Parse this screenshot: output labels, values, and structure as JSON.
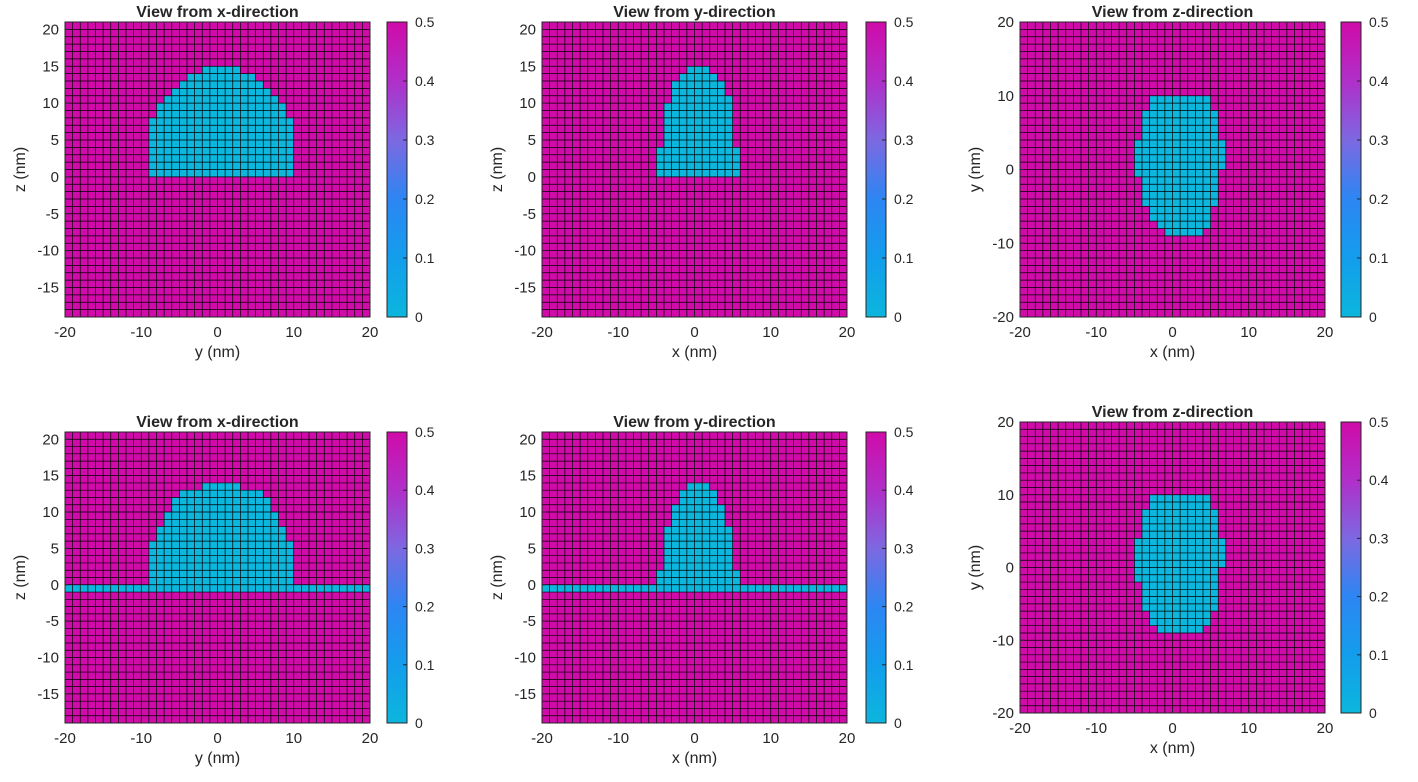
{
  "colors": {
    "low": "#0cb6dd",
    "high": "#d00ba9",
    "grid": "#000000",
    "background": "#ffffff"
  },
  "colormap": {
    "name": "cyan-to-magenta",
    "stops": [
      {
        "v": 0.0,
        "color": "#0cb6dd"
      },
      {
        "v": 0.1,
        "color": "#139dec"
      },
      {
        "v": 0.2,
        "color": "#2d86f3"
      },
      {
        "v": 0.3,
        "color": "#7d68e1"
      },
      {
        "v": 0.4,
        "color": "#b02fc9"
      },
      {
        "v": 0.5,
        "color": "#d00ba9"
      }
    ]
  },
  "chart_data": [
    {
      "type": "heatmap",
      "panel": "top-left",
      "title": "View from x-direction",
      "xlabel": "y (nm)",
      "ylabel": "z (nm)",
      "xlim": [
        -20,
        20
      ],
      "ylim": [
        -19,
        21
      ],
      "xticks": [
        -20,
        -10,
        0,
        10,
        20
      ],
      "xtick_labels": [
        "-20",
        "-10",
        "0",
        "10",
        "20"
      ],
      "yticks": [
        -15,
        -10,
        -5,
        0,
        5,
        10,
        15,
        20
      ],
      "ytick_labels": [
        "-15",
        "-10",
        "-5",
        "0",
        "5",
        "10",
        "15",
        "20"
      ],
      "grid": true,
      "background_value": 0.5,
      "shape_value": 0,
      "shape": {
        "kind": "cap",
        "x_range": [
          -9,
          10
        ],
        "z_base": 0,
        "z_top": 15,
        "rows": [
          [
            0,
            -9,
            10
          ],
          [
            1,
            -9,
            10
          ],
          [
            2,
            -9,
            10
          ],
          [
            3,
            -9,
            10
          ],
          [
            4,
            -9,
            10
          ],
          [
            5,
            -9,
            10
          ],
          [
            6,
            -9,
            10
          ],
          [
            7,
            -9,
            10
          ],
          [
            8,
            -8,
            9
          ],
          [
            9,
            -8,
            9
          ],
          [
            10,
            -7,
            8
          ],
          [
            11,
            -6,
            7
          ],
          [
            12,
            -5,
            6
          ],
          [
            13,
            -4,
            5
          ],
          [
            14,
            -2,
            3
          ]
        ]
      },
      "film": null,
      "colorbar": {
        "limits": [
          0,
          0.5
        ],
        "ticks": [
          0,
          0.1,
          0.2,
          0.3,
          0.4,
          0.5
        ],
        "tick_labels": [
          "0",
          "0.1",
          "0.2",
          "0.3",
          "0.4",
          "0.5"
        ]
      }
    },
    {
      "type": "heatmap",
      "panel": "top-middle",
      "title": "View from y-direction",
      "xlabel": "x (nm)",
      "ylabel": "z (nm)",
      "xlim": [
        -20,
        20
      ],
      "ylim": [
        -19,
        21
      ],
      "xticks": [
        -20,
        -10,
        0,
        10,
        20
      ],
      "xtick_labels": [
        "-20",
        "-10",
        "0",
        "10",
        "20"
      ],
      "yticks": [
        -15,
        -10,
        -5,
        0,
        5,
        10,
        15,
        20
      ],
      "ytick_labels": [
        "-15",
        "-10",
        "-5",
        "0",
        "5",
        "10",
        "15",
        "20"
      ],
      "grid": true,
      "background_value": 0.5,
      "shape_value": 0,
      "shape": {
        "kind": "cap",
        "rows": [
          [
            0,
            -5,
            6
          ],
          [
            1,
            -5,
            6
          ],
          [
            2,
            -5,
            6
          ],
          [
            3,
            -5,
            6
          ],
          [
            4,
            -4,
            5
          ],
          [
            5,
            -4,
            5
          ],
          [
            6,
            -4,
            5
          ],
          [
            7,
            -4,
            5
          ],
          [
            8,
            -4,
            5
          ],
          [
            9,
            -4,
            5
          ],
          [
            10,
            -3,
            5
          ],
          [
            11,
            -3,
            4
          ],
          [
            12,
            -3,
            4
          ],
          [
            13,
            -2,
            3
          ],
          [
            14,
            -1,
            2
          ]
        ]
      },
      "film": null,
      "colorbar": {
        "limits": [
          0,
          0.5
        ],
        "ticks": [
          0,
          0.1,
          0.2,
          0.3,
          0.4,
          0.5
        ],
        "tick_labels": [
          "0",
          "0.1",
          "0.2",
          "0.3",
          "0.4",
          "0.5"
        ]
      }
    },
    {
      "type": "heatmap",
      "panel": "top-right",
      "title": "View from z-direction",
      "xlabel": "x (nm)",
      "ylabel": "y (nm)",
      "xlim": [
        -20,
        20
      ],
      "ylim": [
        -20,
        20
      ],
      "xticks": [
        -20,
        -10,
        0,
        10,
        20
      ],
      "xtick_labels": [
        "-20",
        "-10",
        "0",
        "10",
        "20"
      ],
      "yticks": [
        -20,
        -10,
        0,
        10,
        20
      ],
      "ytick_labels": [
        "-20",
        "-10",
        "0",
        "10",
        "20"
      ],
      "grid": true,
      "background_value": 0.5,
      "shape_value": 0,
      "shape": {
        "kind": "disk",
        "rows": [
          [
            -9,
            -1,
            4
          ],
          [
            -8,
            -2,
            5
          ],
          [
            -7,
            -3,
            5
          ],
          [
            -6,
            -3,
            5
          ],
          [
            -5,
            -4,
            6
          ],
          [
            -4,
            -4,
            6
          ],
          [
            -3,
            -4,
            6
          ],
          [
            -2,
            -4,
            6
          ],
          [
            -1,
            -5,
            6
          ],
          [
            0,
            -5,
            7
          ],
          [
            1,
            -5,
            7
          ],
          [
            2,
            -5,
            7
          ],
          [
            3,
            -5,
            7
          ],
          [
            4,
            -4,
            6
          ],
          [
            5,
            -4,
            6
          ],
          [
            6,
            -4,
            6
          ],
          [
            7,
            -4,
            6
          ],
          [
            8,
            -3,
            5
          ],
          [
            9,
            -3,
            5
          ]
        ]
      },
      "film": null,
      "colorbar": {
        "limits": [
          0,
          0.5
        ],
        "ticks": [
          0,
          0.1,
          0.2,
          0.3,
          0.4,
          0.5
        ],
        "tick_labels": [
          "0",
          "0.1",
          "0.2",
          "0.3",
          "0.4",
          "0.5"
        ]
      }
    },
    {
      "type": "heatmap",
      "panel": "bottom-left",
      "title": "View from x-direction",
      "xlabel": "y (nm)",
      "ylabel": "z (nm)",
      "xlim": [
        -20,
        20
      ],
      "ylim": [
        -19,
        21
      ],
      "xticks": [
        -20,
        -10,
        0,
        10,
        20
      ],
      "xtick_labels": [
        "-20",
        "-10",
        "0",
        "10",
        "20"
      ],
      "yticks": [
        -15,
        -10,
        -5,
        0,
        5,
        10,
        15,
        20
      ],
      "ytick_labels": [
        "-15",
        "-10",
        "-5",
        "0",
        "5",
        "10",
        "15",
        "20"
      ],
      "grid": true,
      "background_value": 0.5,
      "shape_value": 0,
      "shape": {
        "kind": "cap",
        "rows": [
          [
            0,
            -9,
            10
          ],
          [
            1,
            -9,
            10
          ],
          [
            2,
            -9,
            10
          ],
          [
            3,
            -9,
            10
          ],
          [
            4,
            -9,
            10
          ],
          [
            5,
            -9,
            10
          ],
          [
            6,
            -8,
            9
          ],
          [
            7,
            -8,
            9
          ],
          [
            8,
            -7,
            8
          ],
          [
            9,
            -7,
            8
          ],
          [
            10,
            -6,
            7
          ],
          [
            11,
            -6,
            7
          ],
          [
            12,
            -5,
            6
          ],
          [
            13,
            -2,
            3
          ]
        ]
      },
      "film": {
        "z_range": [
          -1,
          0
        ],
        "x_range": [
          -20,
          20
        ]
      },
      "colorbar": {
        "limits": [
          0,
          0.5
        ],
        "ticks": [
          0,
          0.1,
          0.2,
          0.3,
          0.4,
          0.5
        ],
        "tick_labels": [
          "0",
          "0.1",
          "0.2",
          "0.3",
          "0.4",
          "0.5"
        ]
      }
    },
    {
      "type": "heatmap",
      "panel": "bottom-middle",
      "title": "View from y-direction",
      "xlabel": "x (nm)",
      "ylabel": "z (nm)",
      "xlim": [
        -20,
        20
      ],
      "ylim": [
        -19,
        21
      ],
      "xticks": [
        -20,
        -10,
        0,
        10,
        20
      ],
      "xtick_labels": [
        "-20",
        "-10",
        "0",
        "10",
        "20"
      ],
      "yticks": [
        -15,
        -10,
        -5,
        0,
        5,
        10,
        15,
        20
      ],
      "ytick_labels": [
        "-15",
        "-10",
        "-5",
        "0",
        "5",
        "10",
        "15",
        "20"
      ],
      "grid": true,
      "background_value": 0.5,
      "shape_value": 0,
      "shape": {
        "kind": "cap",
        "rows": [
          [
            0,
            -5,
            6
          ],
          [
            1,
            -5,
            6
          ],
          [
            2,
            -4,
            5
          ],
          [
            3,
            -4,
            5
          ],
          [
            4,
            -4,
            5
          ],
          [
            5,
            -4,
            5
          ],
          [
            6,
            -4,
            5
          ],
          [
            7,
            -4,
            5
          ],
          [
            8,
            -3,
            4
          ],
          [
            9,
            -3,
            4
          ],
          [
            10,
            -3,
            4
          ],
          [
            11,
            -2,
            3
          ],
          [
            12,
            -2,
            3
          ],
          [
            13,
            -1,
            2
          ]
        ]
      },
      "film": {
        "z_range": [
          -1,
          0
        ],
        "x_range": [
          -20,
          20
        ]
      },
      "colorbar": {
        "limits": [
          0,
          0.5
        ],
        "ticks": [
          0,
          0.1,
          0.2,
          0.3,
          0.4,
          0.5
        ],
        "tick_labels": [
          "0",
          "0.1",
          "0.2",
          "0.3",
          "0.4",
          "0.5"
        ]
      }
    },
    {
      "type": "heatmap",
      "panel": "bottom-right",
      "title": "View from z-direction",
      "xlabel": "x (nm)",
      "ylabel": "y (nm)",
      "xlim": [
        -20,
        20
      ],
      "ylim": [
        -20,
        20
      ],
      "xticks": [
        -20,
        -10,
        0,
        10,
        20
      ],
      "xtick_labels": [
        "-20",
        "-10",
        "0",
        "10",
        "20"
      ],
      "yticks": [
        -20,
        -10,
        0,
        10,
        20
      ],
      "ytick_labels": [
        "-20",
        "-10",
        "0",
        "10",
        "20"
      ],
      "grid": true,
      "background_value": 0.5,
      "shape_value": 0,
      "shape": {
        "kind": "disk",
        "rows": [
          [
            -9,
            -2,
            4
          ],
          [
            -8,
            -3,
            5
          ],
          [
            -7,
            -3,
            5
          ],
          [
            -6,
            -4,
            6
          ],
          [
            -5,
            -4,
            6
          ],
          [
            -4,
            -4,
            6
          ],
          [
            -3,
            -4,
            6
          ],
          [
            -2,
            -5,
            6
          ],
          [
            -1,
            -5,
            6
          ],
          [
            0,
            -5,
            7
          ],
          [
            1,
            -5,
            7
          ],
          [
            2,
            -5,
            7
          ],
          [
            3,
            -5,
            7
          ],
          [
            4,
            -4,
            6
          ],
          [
            5,
            -4,
            6
          ],
          [
            6,
            -4,
            6
          ],
          [
            7,
            -4,
            6
          ],
          [
            8,
            -3,
            5
          ],
          [
            9,
            -3,
            5
          ]
        ]
      },
      "film": null,
      "colorbar": {
        "limits": [
          0,
          0.5
        ],
        "ticks": [
          0,
          0.1,
          0.2,
          0.3,
          0.4,
          0.5
        ],
        "tick_labels": [
          "0",
          "0.1",
          "0.2",
          "0.3",
          "0.4",
          "0.5"
        ]
      }
    }
  ]
}
